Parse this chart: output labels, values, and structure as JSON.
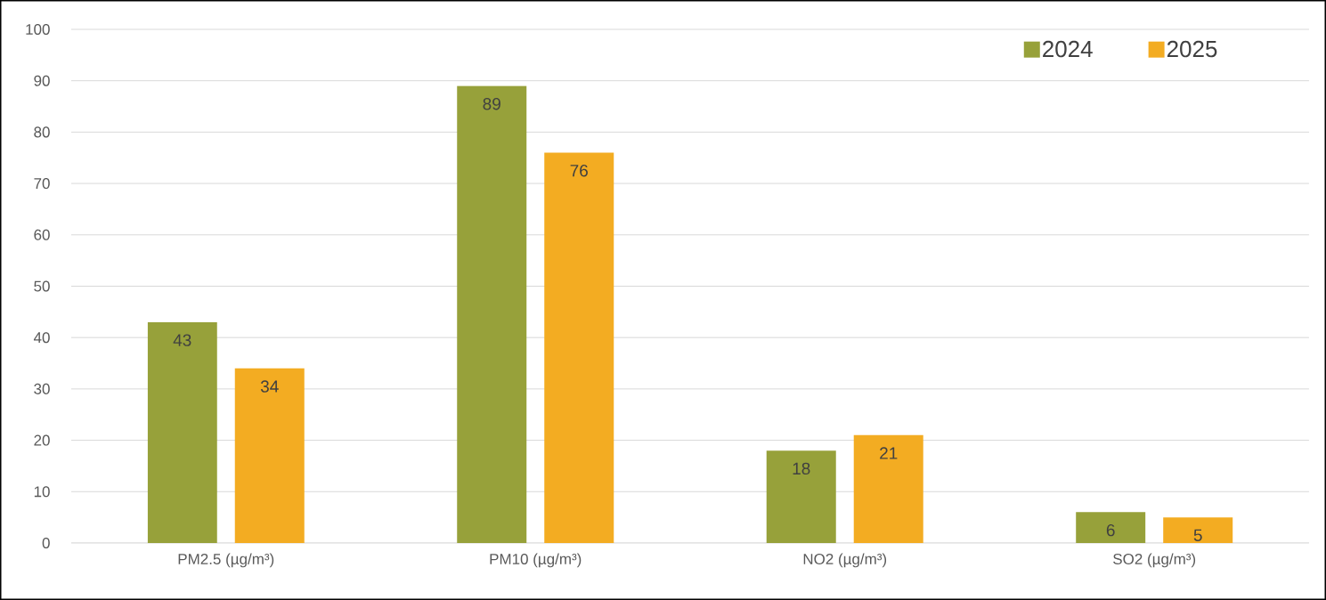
{
  "chart_data": {
    "type": "bar",
    "categories": [
      "PM2.5 (µg/m³)",
      "PM10 (µg/m³)",
      "NO2 (µg/m³)",
      "SO2 (µg/m³)"
    ],
    "series": [
      {
        "name": "2024",
        "color": "#97a13a",
        "values": [
          43,
          89,
          18,
          6
        ]
      },
      {
        "name": "2025",
        "color": "#f3ac22",
        "values": [
          34,
          76,
          21,
          5
        ]
      }
    ],
    "ylim": [
      0,
      100
    ],
    "yticks": [
      0,
      10,
      20,
      30,
      40,
      50,
      60,
      70,
      80,
      90,
      100
    ],
    "grid": "y",
    "legend": "top right",
    "data_labels": true
  }
}
